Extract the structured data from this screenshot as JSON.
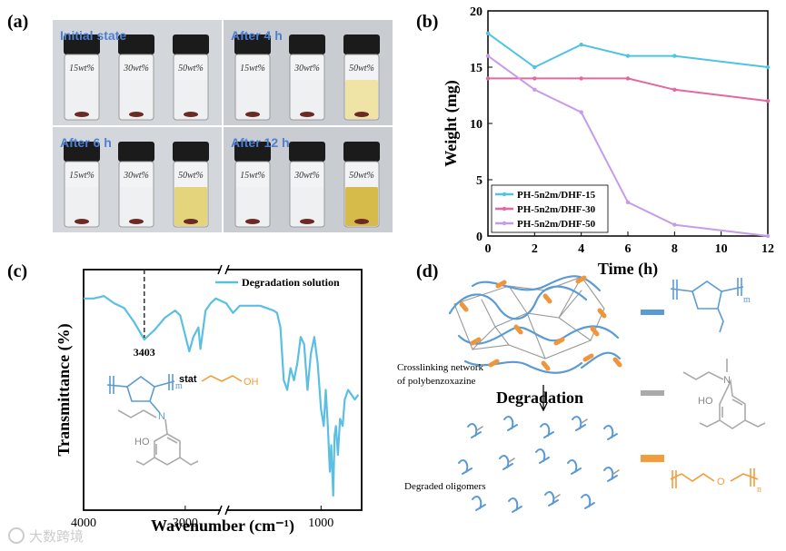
{
  "panel_labels": [
    "(a)",
    "(b)",
    "(c)",
    "(d)"
  ],
  "photos": {
    "tiles": [
      {
        "caption": "Initial state",
        "vials": [
          "15wt%",
          "30wt%",
          "50wt%"
        ]
      },
      {
        "caption": "After 4 h",
        "vials": [
          "15wt%",
          "30wt%",
          "50wt%"
        ]
      },
      {
        "caption": "After 6 h",
        "vials": [
          "15wt%",
          "30wt%",
          "50wt%"
        ]
      },
      {
        "caption": "After 12 h",
        "vials": [
          "15wt%",
          "30wt%",
          "50wt%"
        ]
      }
    ]
  },
  "chart_data": [
    {
      "type": "line",
      "xlabel": "Time (h)",
      "ylabel": "Weight (mg)",
      "x": [
        0,
        2,
        4,
        6,
        8,
        12
      ],
      "xlim": [
        0,
        12
      ],
      "xticks": [
        0,
        2,
        4,
        6,
        8,
        10,
        12
      ],
      "ylim": [
        0,
        20
      ],
      "yticks": [
        0,
        5,
        10,
        15,
        20
      ],
      "legend": "lower left",
      "series": [
        {
          "name": "PH-5n2m/DHF-15",
          "color": "#4fc3e3",
          "values": [
            18,
            15,
            17,
            16,
            16,
            15
          ]
        },
        {
          "name": "PH-5n2m/DHF-30",
          "color": "#e5679f",
          "values": [
            14,
            14,
            14,
            14,
            13,
            12
          ]
        },
        {
          "name": "PH-5n2m/DHF-50",
          "color": "#c59bea",
          "values": [
            16,
            13,
            11,
            3,
            1,
            0
          ]
        }
      ]
    },
    {
      "type": "spectrum",
      "xlabel": "Wavenumber (cm⁻¹)",
      "ylabel": "Transmittance (%)",
      "xlim": [
        4000,
        400
      ],
      "xbreak": [
        2650,
        2400
      ],
      "xticks": [
        4000,
        3000,
        1000
      ],
      "ylim": [
        0,
        100
      ],
      "series": [
        {
          "name": "Degradation solution",
          "color": "#5bbfe2",
          "x": [
            4000,
            3900,
            3800,
            3700,
            3600,
            3500,
            3403,
            3300,
            3200,
            3100,
            3050,
            2960,
            2920,
            2870,
            2850,
            2800,
            2750,
            2700,
            2400,
            2300,
            2200,
            2000,
            1900,
            1800,
            1700,
            1650,
            1600,
            1550,
            1500,
            1450,
            1400,
            1350,
            1300,
            1250,
            1200,
            1150,
            1100,
            1050,
            1000,
            960,
            930,
            900,
            870,
            850,
            820,
            800,
            780,
            750,
            720,
            680,
            650,
            600,
            550,
            500,
            450
          ],
          "values": [
            88,
            88,
            89,
            86,
            84,
            78,
            71,
            75,
            80,
            83,
            81,
            66,
            72,
            76,
            67,
            83,
            86,
            88,
            86,
            82,
            85,
            85,
            85,
            84,
            83,
            82,
            76,
            54,
            50,
            59,
            54,
            61,
            72,
            69,
            50,
            65,
            72,
            61,
            42,
            35,
            50,
            35,
            16,
            27,
            6,
            31,
            35,
            23,
            38,
            35,
            46,
            50,
            48,
            46,
            48
          ]
        }
      ],
      "annotation": {
        "x": 3403,
        "label": "3403"
      },
      "structure": {
        "m": "m",
        "stat": "stat",
        "oh": "OH",
        "n": "N",
        "ho": "HO"
      }
    }
  ],
  "diagram": {
    "network_label": [
      "Crosslinking network",
      "of polybenzoxazine"
    ],
    "step": "Degradation",
    "oligomers": "Degraded oligomers",
    "units": {
      "m": "m",
      "n_amine": "N",
      "ho": "HO",
      "o": "O",
      "n": "n"
    }
  },
  "watermark": "大数跨境"
}
